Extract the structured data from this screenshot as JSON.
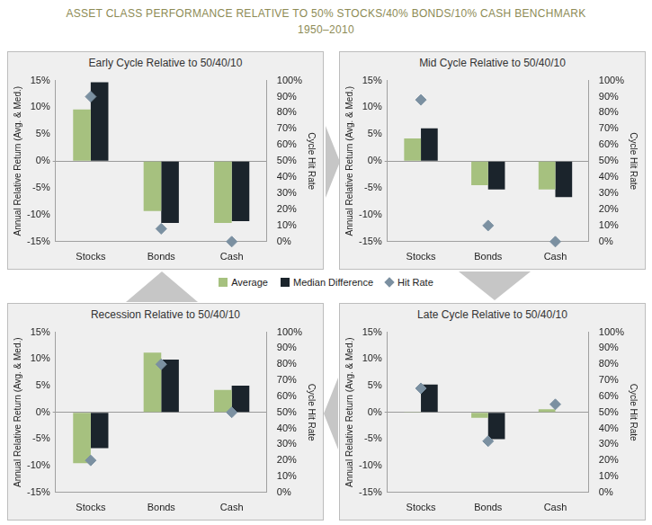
{
  "title": "ASSET CLASS PERFORMANCE RELATIVE TO 50% STOCKS/40% BONDS/10% CASH BENCHMARK",
  "subtitle": "1950–2010",
  "chart_data": [
    {
      "type": "bar",
      "title": "Early Cycle Relative to 50/40/10",
      "categories": [
        "Stocks",
        "Bonds",
        "Cash"
      ],
      "series": [
        {
          "name": "Average",
          "color": "#a6c17f",
          "values": [
            9.6,
            -9.3,
            -11.5
          ]
        },
        {
          "name": "Median Difference",
          "color": "#1b242c",
          "values": [
            14.7,
            -11.5,
            -11.2
          ]
        },
        {
          "name": "Hit Rate",
          "color": "#7b90a1",
          "type": "scatter",
          "marker": "diamond",
          "axis": "y2",
          "values": [
            90,
            8,
            0
          ]
        }
      ],
      "ylabel": "Annual Relative Return (Avg. & Med.)",
      "y2label": "Cycle Hit Rate",
      "ylim": [
        -15,
        15
      ],
      "yticks": [
        {
          "value": -15,
          "label": "-15%"
        },
        {
          "value": -10,
          "label": "-10%"
        },
        {
          "value": -5,
          "label": "-5%"
        },
        {
          "value": 0,
          "label": "0%"
        },
        {
          "value": 5,
          "label": "5%"
        },
        {
          "value": 10,
          "label": "10%"
        },
        {
          "value": 15,
          "label": "15%"
        }
      ],
      "y2lim": [
        0,
        100
      ],
      "y2ticks": [
        {
          "value": 0,
          "label": "0%"
        },
        {
          "value": 10,
          "label": "10%"
        },
        {
          "value": 20,
          "label": "20%"
        },
        {
          "value": 30,
          "label": "30%"
        },
        {
          "value": 40,
          "label": "40%"
        },
        {
          "value": 50,
          "label": "50%"
        },
        {
          "value": 60,
          "label": "60%"
        },
        {
          "value": 70,
          "label": "70%"
        },
        {
          "value": 80,
          "label": "80%"
        },
        {
          "value": 90,
          "label": "90%"
        },
        {
          "value": 100,
          "label": "100%"
        }
      ],
      "grid": false
    },
    {
      "type": "bar",
      "title": "Mid Cycle Relative to 50/40/10",
      "categories": [
        "Stocks",
        "Bonds",
        "Cash"
      ],
      "series": [
        {
          "name": "Average",
          "color": "#a6c17f",
          "values": [
            4.2,
            -4.5,
            -5.3
          ]
        },
        {
          "name": "Median Difference",
          "color": "#1b242c",
          "values": [
            6.1,
            -5.3,
            -6.7
          ]
        },
        {
          "name": "Hit Rate",
          "color": "#7b90a1",
          "type": "scatter",
          "marker": "diamond",
          "axis": "y2",
          "values": [
            88,
            10,
            0
          ]
        }
      ],
      "ylabel": "Annual Relative Return (Avg. & Med.)",
      "y2label": "Cycle Hit Rate",
      "ylim": [
        -15,
        15
      ],
      "yticks": [
        {
          "value": -15,
          "label": "-15%"
        },
        {
          "value": -10,
          "label": "-10%"
        },
        {
          "value": -5,
          "label": "-5%"
        },
        {
          "value": 0,
          "label": "0%"
        },
        {
          "value": 5,
          "label": "5%"
        },
        {
          "value": 10,
          "label": "10%"
        },
        {
          "value": 15,
          "label": "15%"
        }
      ],
      "y2lim": [
        0,
        100
      ],
      "y2ticks": [
        {
          "value": 0,
          "label": "0%"
        },
        {
          "value": 10,
          "label": "10%"
        },
        {
          "value": 20,
          "label": "20%"
        },
        {
          "value": 30,
          "label": "30%"
        },
        {
          "value": 40,
          "label": "40%"
        },
        {
          "value": 50,
          "label": "50%"
        },
        {
          "value": 60,
          "label": "60%"
        },
        {
          "value": 70,
          "label": "70%"
        },
        {
          "value": 80,
          "label": "80%"
        },
        {
          "value": 90,
          "label": "90%"
        },
        {
          "value": 100,
          "label": "100%"
        }
      ],
      "grid": false
    },
    {
      "type": "bar",
      "title": "Recession Relative to 50/40/10",
      "categories": [
        "Stocks",
        "Bonds",
        "Cash"
      ],
      "series": [
        {
          "name": "Average",
          "color": "#a6c17f",
          "values": [
            -9.5,
            11.2,
            4.2
          ]
        },
        {
          "name": "Median Difference",
          "color": "#1b242c",
          "values": [
            -6.7,
            9.9,
            5.0
          ]
        },
        {
          "name": "Hit Rate",
          "color": "#7b90a1",
          "type": "scatter",
          "marker": "diamond",
          "axis": "y2",
          "values": [
            20,
            80,
            50
          ]
        }
      ],
      "ylabel": "Annual Relative Return (Avg. & Med.)",
      "y2label": "Cycle Hit Rate",
      "ylim": [
        -15,
        15
      ],
      "yticks": [
        {
          "value": -15,
          "label": "-15%"
        },
        {
          "value": -10,
          "label": "-10%"
        },
        {
          "value": -5,
          "label": "-5%"
        },
        {
          "value": 0,
          "label": "0%"
        },
        {
          "value": 5,
          "label": "5%"
        },
        {
          "value": 10,
          "label": "10%"
        },
        {
          "value": 15,
          "label": "15%"
        }
      ],
      "y2lim": [
        0,
        100
      ],
      "y2ticks": [
        {
          "value": 0,
          "label": "0%"
        },
        {
          "value": 10,
          "label": "10%"
        },
        {
          "value": 20,
          "label": "20%"
        },
        {
          "value": 30,
          "label": "30%"
        },
        {
          "value": 40,
          "label": "40%"
        },
        {
          "value": 50,
          "label": "50%"
        },
        {
          "value": 60,
          "label": "60%"
        },
        {
          "value": 70,
          "label": "70%"
        },
        {
          "value": 80,
          "label": "80%"
        },
        {
          "value": 90,
          "label": "90%"
        },
        {
          "value": 100,
          "label": "100%"
        }
      ],
      "grid": false
    },
    {
      "type": "bar",
      "title": "Late Cycle Relative to 50/40/10",
      "categories": [
        "Stocks",
        "Bonds",
        "Cash"
      ],
      "series": [
        {
          "name": "Average",
          "color": "#a6c17f",
          "values": [
            0.1,
            -1.0,
            0.6
          ]
        },
        {
          "name": "Median Difference",
          "color": "#1b242c",
          "values": [
            5.2,
            -5.0,
            -0.1
          ]
        },
        {
          "name": "Hit Rate",
          "color": "#7b90a1",
          "type": "scatter",
          "marker": "diamond",
          "axis": "y2",
          "values": [
            65,
            32,
            55
          ]
        }
      ],
      "ylabel": "Annual Relative Return (Avg. & Med.)",
      "y2label": "Cycle Hit Rate",
      "ylim": [
        -15,
        15
      ],
      "yticks": [
        {
          "value": -15,
          "label": "-15%"
        },
        {
          "value": -10,
          "label": "-10%"
        },
        {
          "value": -5,
          "label": "-5%"
        },
        {
          "value": 0,
          "label": "0%"
        },
        {
          "value": 5,
          "label": "5%"
        },
        {
          "value": 10,
          "label": "10%"
        },
        {
          "value": 15,
          "label": "15%"
        }
      ],
      "y2lim": [
        0,
        100
      ],
      "y2ticks": [
        {
          "value": 0,
          "label": "0%"
        },
        {
          "value": 10,
          "label": "10%"
        },
        {
          "value": 20,
          "label": "20%"
        },
        {
          "value": 30,
          "label": "30%"
        },
        {
          "value": 40,
          "label": "40%"
        },
        {
          "value": 50,
          "label": "50%"
        },
        {
          "value": 60,
          "label": "60%"
        },
        {
          "value": 70,
          "label": "70%"
        },
        {
          "value": 80,
          "label": "80%"
        },
        {
          "value": 90,
          "label": "90%"
        },
        {
          "value": 100,
          "label": "100%"
        }
      ],
      "grid": false
    }
  ]
}
